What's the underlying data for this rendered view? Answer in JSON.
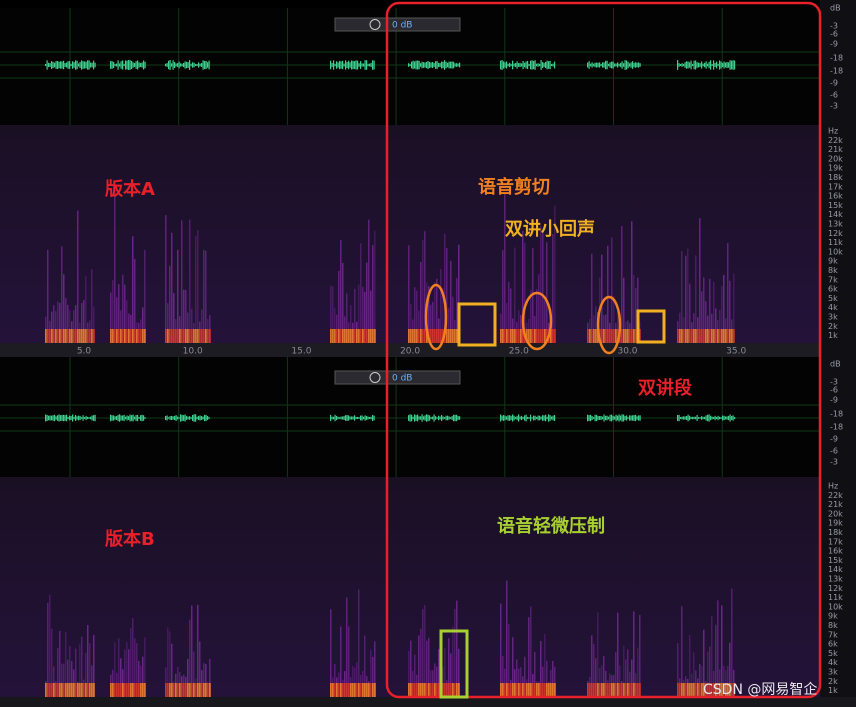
{
  "annotations": {
    "version_a": "版本A",
    "version_b": "版本B",
    "speech_cut": "语音剪切",
    "double_talk_echo": "双讲小回声",
    "double_talk_segment": "双讲段",
    "speech_suppression": "语音轻微压制"
  },
  "watermark": "CSDN @网易智企",
  "timeline": [
    "5.0",
    "10.0",
    "15.0",
    "20.0",
    "25.0",
    "30.0",
    "35.0"
  ],
  "volume": [
    "0 dB",
    "0 dB"
  ],
  "db_scale": [
    "dB",
    "-3",
    "-6",
    "-9",
    "-18",
    "-18",
    "-9",
    "-6",
    "-3"
  ],
  "hz_scale": [
    "Hz",
    "22k",
    "21k",
    "20k",
    "19k",
    "18k",
    "17k",
    "16k",
    "15k",
    "14k",
    "13k",
    "12k",
    "11k",
    "10k",
    "9k",
    "8k",
    "7k",
    "6k",
    "5k",
    "4k",
    "3k",
    "2k",
    "1k"
  ]
}
